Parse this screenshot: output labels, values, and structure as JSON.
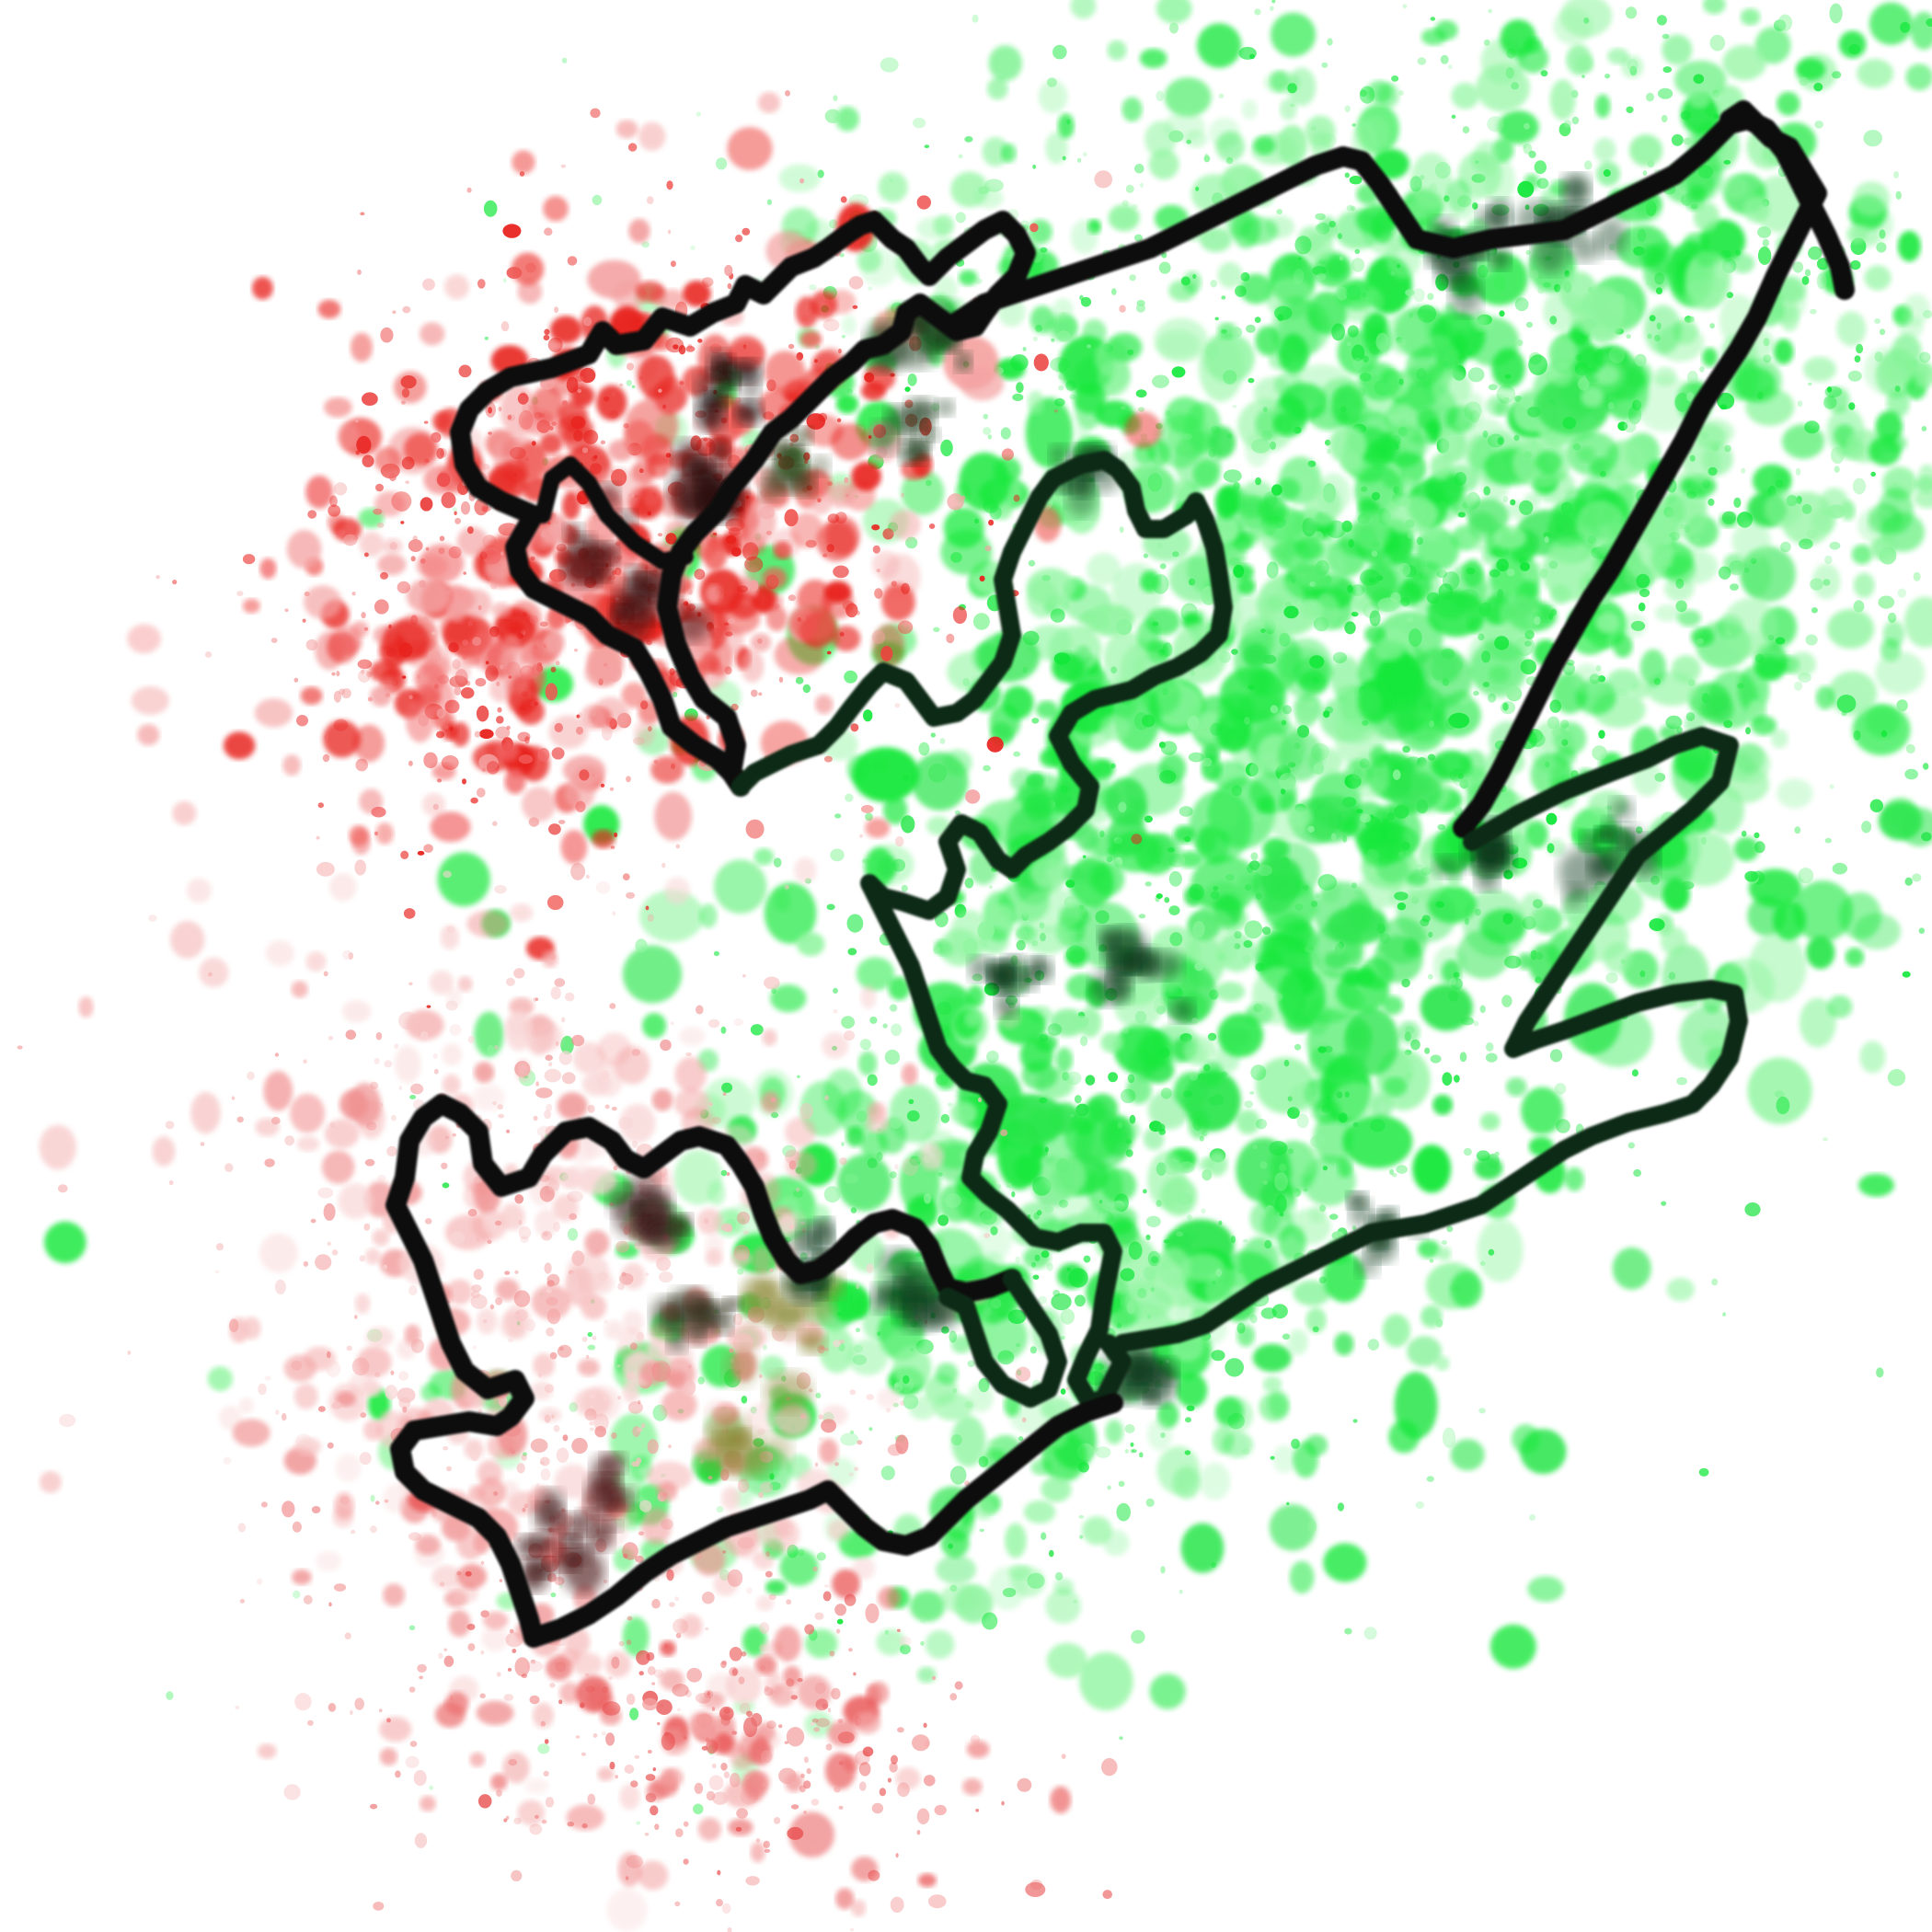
{
  "artwork": {
    "background_color": "#ffffff",
    "palette": {
      "red": "#e8231f",
      "pink": "#f4a3a3",
      "green": "#12e83a",
      "light_green": "#8ff59f",
      "ink": "#0c0c0c",
      "dark_green_ink": "#0e3a1a",
      "olive": "#8f8a3a"
    },
    "elements": [
      {
        "name": "red-splatter-cloud-upper",
        "color": "red"
      },
      {
        "name": "pink-splatter-cloud-lower",
        "color": "pink"
      },
      {
        "name": "green-splatter-field",
        "color": "green"
      },
      {
        "name": "black-outline-stroke-upper",
        "color": "ink"
      },
      {
        "name": "black-outline-stroke-lower",
        "color": "ink"
      },
      {
        "name": "black-outline-stroke-right",
        "color": "ink"
      }
    ]
  }
}
